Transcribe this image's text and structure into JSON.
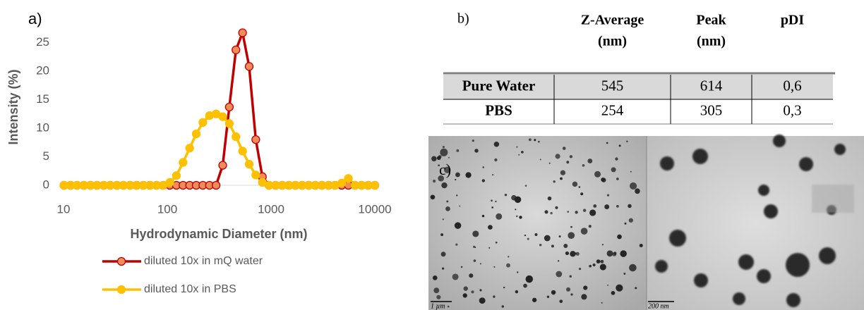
{
  "chart_data": {
    "type": "line",
    "panel_label": "a)",
    "x_label": "Hydrodynamic Diameter (nm)",
    "y_label": "Intensity (%)",
    "log_x": true,
    "grid": false,
    "xlim": [
      10,
      10000
    ],
    "xticks": [
      10,
      100,
      1000,
      10000
    ],
    "ylim": [
      0,
      27.5
    ],
    "yticks": [
      0,
      5,
      10,
      15,
      20,
      25
    ],
    "x": [
      10.1,
      11.7,
      13.5,
      15.7,
      18.2,
      21.0,
      24.4,
      28.2,
      32.7,
      37.8,
      43.8,
      50.7,
      58.8,
      68.1,
      78.8,
      91.3,
      105.7,
      122.4,
      141.8,
      164.2,
      190.1,
      220.2,
      255.0,
      295.3,
      342.0,
      396.1,
      458.7,
      531.2,
      615.1,
      712.4,
      825.0,
      955.4,
      1106,
      1281,
      1484,
      1718,
      1990,
      2305,
      2669,
      3091,
      3580,
      4145,
      4801,
      5560,
      6439,
      7456,
      8635,
      10000
    ],
    "series": [
      {
        "name": "diluted 10x in mQ water",
        "color": "#c00000",
        "marker_fill": "#f08c5a",
        "values": [
          0,
          0,
          0,
          0,
          0,
          0,
          0,
          0,
          0,
          0,
          0,
          0,
          0,
          0,
          0,
          0,
          0,
          0,
          0,
          0,
          0,
          0,
          0,
          0,
          3.5,
          13.7,
          23.7,
          26.7,
          20.8,
          8.0,
          1.5,
          0,
          0,
          0,
          0,
          0,
          0,
          0,
          0,
          0,
          0,
          0,
          0,
          0,
          0,
          0,
          0,
          0
        ]
      },
      {
        "name": "diluted 10x in PBS",
        "color": "#ffc000",
        "marker_fill": "#ffc000",
        "values": [
          0,
          0,
          0,
          0,
          0,
          0,
          0,
          0,
          0,
          0,
          0,
          0,
          0,
          0,
          0,
          0,
          0.5,
          1.7,
          4.0,
          6.5,
          9.0,
          11.0,
          12.2,
          12.5,
          12.0,
          10.8,
          8.5,
          6.0,
          3.7,
          1.8,
          0.5,
          0,
          0,
          0,
          0,
          0,
          0,
          0,
          0,
          0,
          0,
          0,
          0.4,
          1.2,
          0,
          0,
          0,
          0
        ]
      }
    ]
  },
  "table": {
    "label": "b)",
    "columns": [
      [
        "Z-Average",
        "(nm)"
      ],
      [
        "Peak",
        "(nm)"
      ],
      [
        "pDI"
      ]
    ],
    "rows": [
      [
        "Pure Water",
        "545",
        "614",
        "0,6"
      ],
      [
        "PBS",
        "254",
        "305",
        "0,3"
      ]
    ]
  },
  "images": {
    "label": "c)",
    "scale_bars": [
      "1 µm",
      "200 nm"
    ]
  }
}
